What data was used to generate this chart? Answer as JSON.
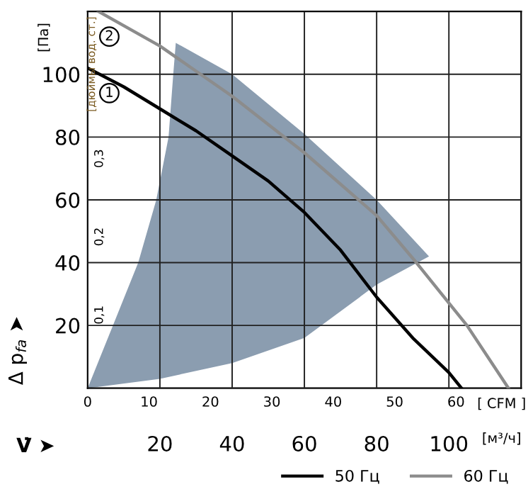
{
  "chart_data": {
    "type": "line",
    "xlabel": "V̇ ➤",
    "ylabel": "Δ p$_{fa}$ ➤",
    "y2label": "[дюймы вод. ст.]",
    "x2label": "[ CFM ]",
    "xlim": [
      0,
      120
    ],
    "xticks": [
      {
        "value": 0,
        "label": null
      },
      20,
      40,
      60,
      80,
      100
    ],
    "ylim": [
      0,
      120
    ],
    "yticks": [
      {
        "value": 0,
        "label": null
      },
      20,
      40,
      60,
      80,
      100
    ],
    "x2lim": [
      0,
      70.6
    ],
    "x2ticks": [
      0,
      10,
      20,
      30,
      40,
      50,
      60
    ],
    "y2lim": [
      0,
      0.4818
    ],
    "y2ticks": [
      {
        "value": 0.1,
        "label": "0,1"
      },
      {
        "value": 0.2,
        "label": "0,2"
      },
      {
        "value": 0.3,
        "label": "0,3"
      }
    ],
    "grid": true,
    "legend": "bottom right",
    "series": [
      {
        "type": "area",
        "color": "#8b9db0",
        "x": [
          0,
          7,
          14,
          19,
          22.4,
          23.7,
          24.4,
          40,
          60,
          80,
          94.5,
          80,
          60,
          40,
          20,
          0
        ],
        "values": [
          0,
          20,
          40,
          60,
          80,
          100,
          110,
          100,
          81,
          60,
          42,
          33,
          16,
          8,
          3,
          0
        ]
      },
      {
        "name": "50 Гц",
        "color": "#000000",
        "x": [
          0,
          10,
          20,
          30,
          40,
          50,
          60,
          70,
          80,
          90,
          100,
          103.5
        ],
        "values": [
          102,
          96,
          89,
          82,
          74,
          66,
          56,
          44,
          29,
          16,
          5,
          0
        ]
      },
      {
        "name": "60 Гц",
        "color": "#8c8c8c",
        "x": [
          3,
          20,
          40,
          60,
          80,
          91,
          105,
          116.5
        ],
        "values": [
          120,
          109,
          93,
          75,
          55,
          40,
          20,
          0
        ]
      }
    ],
    "annotations": [
      "[Па]",
      "[м³/ч]",
      {
        "text": "1",
        "x": 6,
        "y": 94
      },
      {
        "text": "2",
        "x": 6,
        "y": 112
      }
    ]
  }
}
